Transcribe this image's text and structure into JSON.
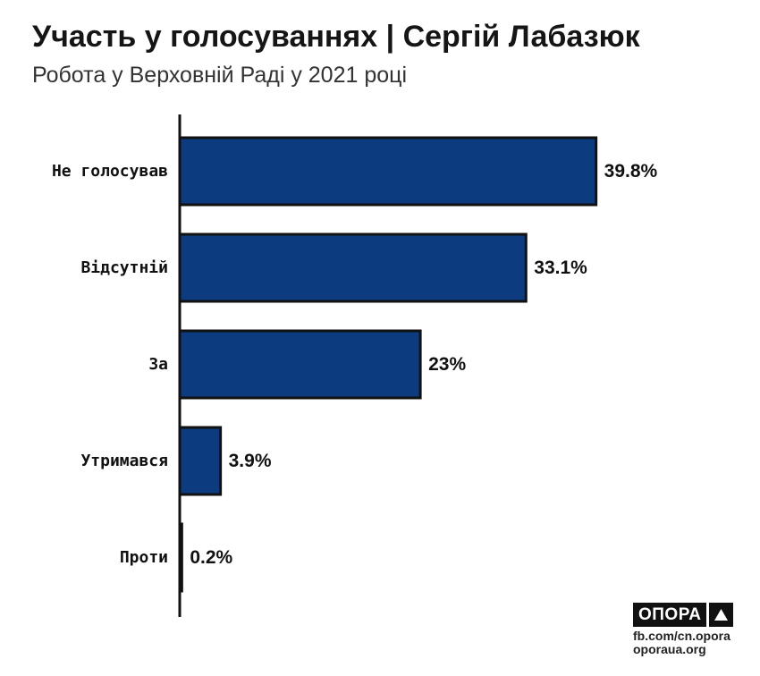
{
  "header": {
    "title": "Участь у голосуваннях | Сергій Лабазюк",
    "subtitle": "Робота у Верховній Раді у 2021 році"
  },
  "chart_data": {
    "type": "bar",
    "orientation": "horizontal",
    "categories": [
      "Не голосував",
      "Відсутній",
      "За",
      "Утримався",
      "Проти"
    ],
    "values": [
      39.8,
      33.1,
      23,
      3.9,
      0.2
    ],
    "value_labels": [
      "39.8%",
      "33.1%",
      "23%",
      "3.9%",
      "0.2%"
    ],
    "xlim": [
      0,
      40
    ],
    "grid": false,
    "bar_color": "#0c3b7f",
    "bar_edge_color": "#111111"
  },
  "footer": {
    "logo_text": "ОПОРА",
    "logo_icon": "triangle-up-icon",
    "link_1": "fb.com/cn.opora",
    "link_2": "oporaua.org"
  }
}
